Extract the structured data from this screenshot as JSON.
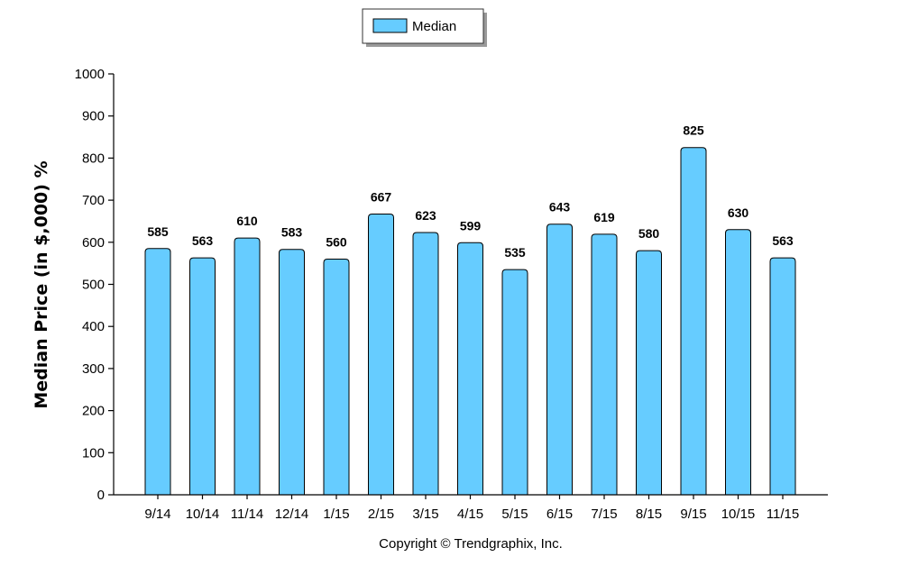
{
  "chart_data": {
    "type": "bar",
    "categories": [
      "9/14",
      "10/14",
      "11/14",
      "12/14",
      "1/15",
      "2/15",
      "3/15",
      "4/15",
      "5/15",
      "6/15",
      "7/15",
      "8/15",
      "9/15",
      "10/15",
      "11/15"
    ],
    "series": [
      {
        "name": "Median",
        "values": [
          585,
          563,
          610,
          583,
          560,
          667,
          623,
          599,
          535,
          643,
          619,
          580,
          825,
          630,
          563
        ]
      }
    ],
    "data_labels": [
      "585",
      "563",
      "610",
      "583",
      "560",
      "667",
      "623",
      "599",
      "535",
      "643",
      "619",
      "580",
      "825",
      "630",
      "563"
    ],
    "ylabel": "Median Price (in $,000) %",
    "xlabel": "",
    "ylim": [
      0,
      1000
    ],
    "yticks": [
      "0",
      "100",
      "200",
      "300",
      "400",
      "500",
      "600",
      "700",
      "800",
      "900",
      "1000"
    ],
    "legend_position": "top-center",
    "grid": false,
    "bar_color": "#66CCFF"
  },
  "footer": {
    "copyright": "Copyright © Trendgraphix, Inc."
  }
}
